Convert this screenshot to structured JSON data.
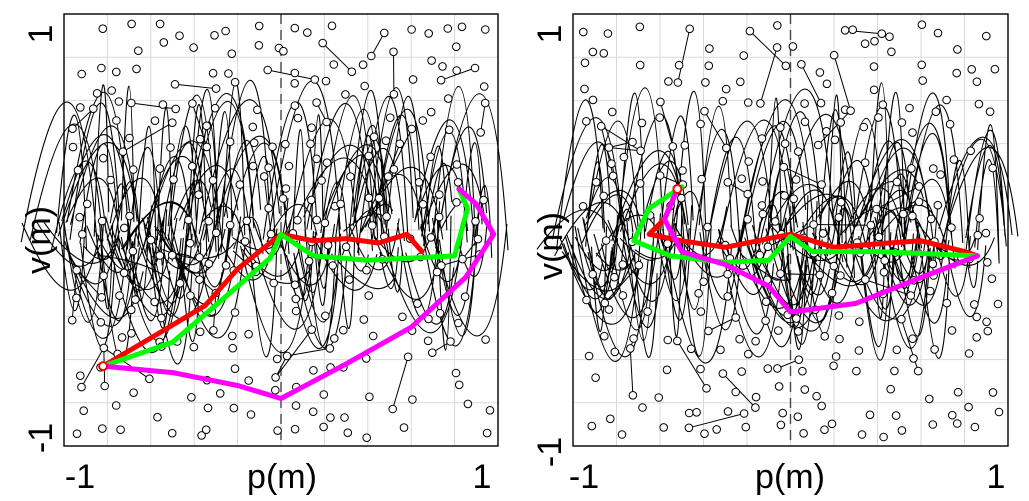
{
  "colors": {
    "tree": "#000000",
    "grid": "#d9d9d9",
    "axis": "#000000",
    "path_red": "#ff0000",
    "path_green": "#00ff00",
    "path_magenta": "#ff00ff"
  },
  "chart_data": [
    {
      "type": "scatter",
      "title": "",
      "xlabel": "p(m)",
      "ylabel": "v(m)",
      "xlim": [
        -1,
        1
      ],
      "ylim": [
        -1,
        1
      ],
      "x_ticks": [
        "-1",
        "1"
      ],
      "y_ticks": [
        "1",
        "-1"
      ],
      "grid": true,
      "center_line_x": 0,
      "series": [
        {
          "name": "red",
          "color": "#ff0000",
          "points": [
            [
              -0.82,
              -0.63
            ],
            [
              -0.6,
              -0.5
            ],
            [
              -0.35,
              -0.35
            ],
            [
              -0.2,
              -0.18
            ],
            [
              0.0,
              -0.02
            ],
            [
              0.15,
              -0.05
            ],
            [
              0.3,
              -0.04
            ],
            [
              0.45,
              -0.06
            ],
            [
              0.58,
              -0.02
            ],
            [
              0.65,
              -0.1
            ]
          ]
        },
        {
          "name": "green",
          "color": "#00ff00",
          "points": [
            [
              -0.82,
              -0.63
            ],
            [
              -0.5,
              -0.52
            ],
            [
              -0.28,
              -0.33
            ],
            [
              -0.05,
              -0.13
            ],
            [
              0.0,
              -0.02
            ],
            [
              0.15,
              -0.12
            ],
            [
              0.4,
              -0.14
            ],
            [
              0.8,
              -0.12
            ],
            [
              0.86,
              0.1
            ],
            [
              0.82,
              0.19
            ]
          ]
        },
        {
          "name": "magenta",
          "color": "#ff00ff",
          "points": [
            [
              -0.82,
              -0.63
            ],
            [
              -0.5,
              -0.66
            ],
            [
              -0.2,
              -0.72
            ],
            [
              0.0,
              -0.78
            ],
            [
              0.3,
              -0.62
            ],
            [
              0.6,
              -0.45
            ],
            [
              0.85,
              -0.22
            ],
            [
              0.98,
              -0.02
            ],
            [
              0.9,
              0.12
            ],
            [
              0.82,
              0.19
            ]
          ]
        }
      ]
    },
    {
      "type": "scatter",
      "title": "",
      "xlabel": "p(m)",
      "ylabel": "v(m)",
      "xlim": [
        -1,
        1
      ],
      "ylim": [
        -1,
        1
      ],
      "x_ticks": [
        "-1",
        "1"
      ],
      "y_ticks": [
        "1",
        "-1"
      ],
      "grid": true,
      "center_line_x": 0,
      "series": [
        {
          "name": "red",
          "color": "#ff0000",
          "points": [
            [
              -0.52,
              0.19
            ],
            [
              -0.58,
              0.05
            ],
            [
              -0.65,
              -0.02
            ],
            [
              -0.5,
              -0.05
            ],
            [
              -0.3,
              -0.08
            ],
            [
              -0.1,
              -0.04
            ],
            [
              0.0,
              -0.02
            ],
            [
              0.2,
              -0.08
            ],
            [
              0.45,
              -0.06
            ],
            [
              0.6,
              -0.05
            ],
            [
              0.8,
              -0.1
            ],
            [
              0.86,
              -0.12
            ]
          ]
        },
        {
          "name": "green",
          "color": "#00ff00",
          "points": [
            [
              -0.5,
              0.2
            ],
            [
              -0.65,
              0.1
            ],
            [
              -0.72,
              -0.05
            ],
            [
              -0.55,
              -0.12
            ],
            [
              -0.3,
              -0.15
            ],
            [
              -0.1,
              -0.14
            ],
            [
              0.0,
              -0.03
            ],
            [
              0.1,
              -0.1
            ],
            [
              0.4,
              -0.1
            ],
            [
              0.86,
              -0.12
            ]
          ]
        },
        {
          "name": "magenta",
          "color": "#ff00ff",
          "points": [
            [
              -0.52,
              0.19
            ],
            [
              -0.58,
              0.05
            ],
            [
              -0.5,
              -0.1
            ],
            [
              -0.3,
              -0.16
            ],
            [
              -0.1,
              -0.26
            ],
            [
              0.0,
              -0.38
            ],
            [
              0.3,
              -0.34
            ],
            [
              0.6,
              -0.22
            ],
            [
              0.86,
              -0.12
            ]
          ]
        }
      ]
    }
  ]
}
